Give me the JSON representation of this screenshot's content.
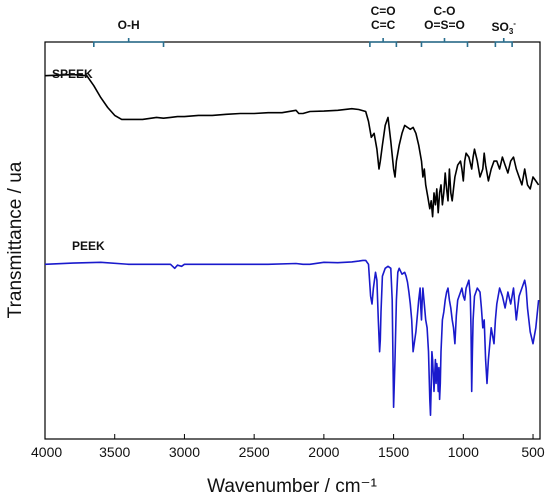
{
  "chart_data": {
    "type": "line",
    "xlabel": "Wavenumber / cm⁻¹",
    "ylabel": "Transmittance / ua",
    "xlim": [
      4000,
      450
    ],
    "x_reversed": true,
    "xticks": [
      4000,
      3500,
      3000,
      2500,
      2000,
      1500,
      1000,
      500
    ],
    "ylim": [
      0,
      1
    ],
    "y_ticks_shown": false,
    "grid": false,
    "legend": "none",
    "series": [
      {
        "name": "SPEEK",
        "color": "#000000",
        "x": [
          4000,
          3800,
          3700,
          3650,
          3600,
          3550,
          3500,
          3450,
          3400,
          3300,
          3200,
          3150,
          3100,
          3050,
          3000,
          2900,
          2800,
          2700,
          2600,
          2500,
          2400,
          2300,
          2200,
          2180,
          2150,
          2100,
          2000,
          1900,
          1800,
          1750,
          1700,
          1680,
          1660,
          1640,
          1620,
          1605,
          1595,
          1580,
          1560,
          1540,
          1520,
          1500,
          1490,
          1480,
          1470,
          1460,
          1440,
          1420,
          1400,
          1380,
          1360,
          1340,
          1320,
          1300,
          1290,
          1280,
          1270,
          1255,
          1240,
          1230,
          1220,
          1210,
          1200,
          1190,
          1180,
          1170,
          1160,
          1150,
          1140,
          1130,
          1120,
          1110,
          1100,
          1090,
          1080,
          1070,
          1060,
          1040,
          1020,
          1010,
          1000,
          990,
          980,
          960,
          940,
          930,
          920,
          900,
          880,
          860,
          850,
          840,
          820,
          800,
          780,
          760,
          750,
          740,
          720,
          700,
          680,
          660,
          640,
          620,
          600,
          580,
          560,
          540,
          520,
          500,
          480,
          460
        ],
        "y": [
          0.915,
          0.918,
          0.915,
          0.89,
          0.86,
          0.835,
          0.815,
          0.805,
          0.805,
          0.805,
          0.81,
          0.808,
          0.81,
          0.812,
          0.812,
          0.815,
          0.815,
          0.818,
          0.82,
          0.82,
          0.822,
          0.822,
          0.828,
          0.82,
          0.82,
          0.825,
          0.826,
          0.828,
          0.832,
          0.83,
          0.825,
          0.8,
          0.76,
          0.77,
          0.73,
          0.68,
          0.7,
          0.74,
          0.79,
          0.81,
          0.75,
          0.68,
          0.66,
          0.7,
          0.72,
          0.74,
          0.77,
          0.79,
          0.785,
          0.78,
          0.785,
          0.77,
          0.74,
          0.7,
          0.66,
          0.68,
          0.64,
          0.61,
          0.58,
          0.6,
          0.56,
          0.62,
          0.59,
          0.63,
          0.57,
          0.62,
          0.64,
          0.59,
          0.62,
          0.67,
          0.63,
          0.6,
          0.68,
          0.62,
          0.6,
          0.63,
          0.66,
          0.69,
          0.7,
          0.68,
          0.65,
          0.7,
          0.72,
          0.71,
          0.68,
          0.71,
          0.73,
          0.7,
          0.66,
          0.68,
          0.72,
          0.69,
          0.65,
          0.68,
          0.7,
          0.7,
          0.69,
          0.68,
          0.71,
          0.69,
          0.67,
          0.7,
          0.71,
          0.68,
          0.66,
          0.64,
          0.68,
          0.64,
          0.63,
          0.66,
          0.65,
          0.64
        ]
      },
      {
        "name": "PEEK",
        "color": "#1a1acc",
        "x": [
          4000,
          3800,
          3600,
          3400,
          3200,
          3100,
          3070,
          3050,
          3020,
          3000,
          2900,
          2800,
          2600,
          2400,
          2200,
          2150,
          2100,
          2000,
          1900,
          1800,
          1750,
          1720,
          1700,
          1680,
          1665,
          1655,
          1645,
          1630,
          1620,
          1610,
          1600,
          1595,
          1590,
          1580,
          1560,
          1540,
          1520,
          1510,
          1500,
          1490,
          1480,
          1470,
          1460,
          1440,
          1420,
          1410,
          1400,
          1390,
          1380,
          1370,
          1360,
          1340,
          1320,
          1310,
          1305,
          1300,
          1295,
          1290,
          1285,
          1280,
          1270,
          1260,
          1250,
          1240,
          1235,
          1230,
          1225,
          1220,
          1210,
          1200,
          1195,
          1190,
          1185,
          1180,
          1175,
          1170,
          1165,
          1160,
          1155,
          1150,
          1140,
          1130,
          1120,
          1110,
          1100,
          1090,
          1080,
          1070,
          1060,
          1050,
          1040,
          1030,
          1020,
          1010,
          1000,
          990,
          980,
          960,
          950,
          945,
          940,
          935,
          930,
          920,
          900,
          880,
          870,
          860,
          850,
          840,
          830,
          820,
          800,
          780,
          770,
          760,
          740,
          720,
          700,
          690,
          680,
          660,
          640,
          620,
          600,
          580,
          560,
          550,
          540,
          520,
          500,
          480,
          460
        ],
        "y": [
          0.44,
          0.443,
          0.445,
          0.44,
          0.44,
          0.44,
          0.43,
          0.438,
          0.435,
          0.44,
          0.44,
          0.44,
          0.44,
          0.44,
          0.442,
          0.44,
          0.44,
          0.445,
          0.444,
          0.446,
          0.448,
          0.45,
          0.45,
          0.44,
          0.36,
          0.34,
          0.38,
          0.42,
          0.4,
          0.3,
          0.22,
          0.25,
          0.32,
          0.41,
          0.43,
          0.435,
          0.43,
          0.35,
          0.08,
          0.2,
          0.35,
          0.42,
          0.43,
          0.415,
          0.42,
          0.41,
          0.395,
          0.37,
          0.34,
          0.3,
          0.22,
          0.27,
          0.35,
          0.38,
          0.33,
          0.3,
          0.35,
          0.38,
          0.36,
          0.34,
          0.3,
          0.28,
          0.22,
          0.1,
          0.06,
          0.13,
          0.22,
          0.2,
          0.12,
          0.2,
          0.14,
          0.19,
          0.17,
          0.12,
          0.18,
          0.1,
          0.14,
          0.22,
          0.26,
          0.3,
          0.32,
          0.35,
          0.37,
          0.38,
          0.35,
          0.33,
          0.3,
          0.28,
          0.24,
          0.31,
          0.35,
          0.36,
          0.37,
          0.38,
          0.36,
          0.35,
          0.38,
          0.4,
          0.36,
          0.28,
          0.12,
          0.22,
          0.3,
          0.36,
          0.38,
          0.37,
          0.33,
          0.28,
          0.3,
          0.2,
          0.14,
          0.2,
          0.28,
          0.24,
          0.3,
          0.34,
          0.38,
          0.36,
          0.33,
          0.35,
          0.37,
          0.34,
          0.38,
          0.3,
          0.36,
          0.38,
          0.4,
          0.38,
          0.33,
          0.27,
          0.24,
          0.28,
          0.35
        ]
      }
    ],
    "annotations": [
      {
        "id": "oh",
        "text": "O-H",
        "x_from": 3650,
        "x_to": 3150
      },
      {
        "id": "carbonyl",
        "lines": [
          "C=O",
          "C=C"
        ],
        "x_from": 1670,
        "x_to": 1480
      },
      {
        "id": "sulfone",
        "lines": [
          "C-O",
          "O=S=O"
        ],
        "x_from": 1300,
        "x_to": 970
      },
      {
        "id": "sulfonate",
        "text": "SO",
        "sub": "3",
        "sup": "-",
        "x_from": 770,
        "x_to": 650
      }
    ]
  }
}
